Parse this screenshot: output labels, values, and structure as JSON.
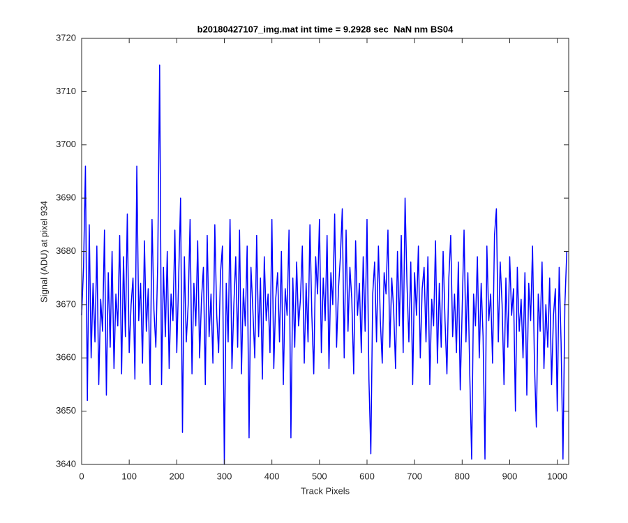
{
  "chart_data": {
    "type": "line",
    "title": "b20180427107_img.mat int time = 9.2928 sec  NaN nm BS04",
    "xlabel": "Track Pixels",
    "ylabel": "Signal (ADU) at pixel 934",
    "color": "#0000ff",
    "xlim": [
      0,
      1024
    ],
    "ylim": [
      3640,
      3720
    ],
    "xticks": [
      0,
      100,
      200,
      300,
      400,
      500,
      600,
      700,
      800,
      900,
      1000
    ],
    "yticks": [
      3640,
      3650,
      3660,
      3670,
      3680,
      3690,
      3700,
      3710,
      3720
    ],
    "x": [
      0,
      4,
      8,
      12,
      16,
      20,
      24,
      28,
      32,
      36,
      40,
      44,
      48,
      52,
      56,
      60,
      64,
      68,
      72,
      76,
      80,
      84,
      88,
      92,
      96,
      100,
      104,
      108,
      112,
      116,
      120,
      124,
      128,
      132,
      136,
      140,
      144,
      148,
      152,
      156,
      160,
      164,
      168,
      172,
      176,
      180,
      184,
      188,
      192,
      196,
      200,
      204,
      208,
      212,
      216,
      220,
      224,
      228,
      232,
      236,
      240,
      244,
      248,
      252,
      256,
      260,
      264,
      268,
      272,
      276,
      280,
      284,
      288,
      292,
      296,
      300,
      304,
      308,
      312,
      316,
      320,
      324,
      328,
      332,
      336,
      340,
      344,
      348,
      352,
      356,
      360,
      364,
      368,
      372,
      376,
      380,
      384,
      388,
      392,
      396,
      400,
      404,
      408,
      412,
      416,
      420,
      424,
      428,
      432,
      436,
      440,
      444,
      448,
      452,
      456,
      460,
      464,
      468,
      472,
      476,
      480,
      484,
      488,
      492,
      496,
      500,
      504,
      508,
      512,
      516,
      520,
      524,
      528,
      532,
      536,
      540,
      544,
      548,
      552,
      556,
      560,
      564,
      568,
      572,
      576,
      580,
      584,
      588,
      592,
      596,
      600,
      604,
      608,
      612,
      616,
      620,
      624,
      628,
      632,
      636,
      640,
      644,
      648,
      652,
      656,
      660,
      664,
      668,
      672,
      676,
      680,
      684,
      688,
      692,
      696,
      700,
      704,
      708,
      712,
      716,
      720,
      724,
      728,
      732,
      736,
      740,
      744,
      748,
      752,
      756,
      760,
      764,
      768,
      772,
      776,
      780,
      784,
      788,
      792,
      796,
      800,
      804,
      808,
      812,
      816,
      820,
      824,
      828,
      832,
      836,
      840,
      844,
      848,
      852,
      856,
      860,
      864,
      868,
      872,
      876,
      880,
      884,
      888,
      892,
      896,
      900,
      904,
      908,
      912,
      916,
      920,
      924,
      928,
      932,
      936,
      940,
      944,
      948,
      952,
      956,
      960,
      964,
      968,
      972,
      976,
      980,
      984,
      988,
      992,
      996,
      1000,
      1004,
      1008,
      1012,
      1016,
      1020
    ],
    "values": [
      3668,
      3677,
      3696,
      3652,
      3685,
      3660,
      3674,
      3663,
      3681,
      3655,
      3671,
      3665,
      3684,
      3653,
      3676,
      3662,
      3680,
      3658,
      3672,
      3666,
      3683,
      3657,
      3679,
      3664,
      3687,
      3661,
      3670,
      3675,
      3656,
      3696,
      3667,
      3674,
      3659,
      3682,
      3665,
      3673,
      3655,
      3686,
      3669,
      3662,
      3678,
      3715,
      3655,
      3677,
      3664,
      3680,
      3658,
      3672,
      3667,
      3684,
      3661,
      3675,
      3690,
      3646,
      3679,
      3663,
      3670,
      3686,
      3657,
      3674,
      3666,
      3682,
      3660,
      3671,
      3677,
      3655,
      3683,
      3664,
      3672,
      3659,
      3685,
      3668,
      3661,
      3676,
      3681,
      3640,
      3674,
      3663,
      3686,
      3658,
      3670,
      3679,
      3662,
      3684,
      3657,
      3673,
      3666,
      3681,
      3645,
      3677,
      3669,
      3660,
      3683,
      3664,
      3675,
      3656,
      3679,
      3667,
      3672,
      3661,
      3686,
      3658,
      3671,
      3676,
      3663,
      3680,
      3655,
      3673,
      3668,
      3684,
      3645,
      3675,
      3662,
      3678,
      3666,
      3671,
      3681,
      3659,
      3674,
      3663,
      3685,
      3668,
      3657,
      3679,
      3672,
      3686,
      3661,
      3675,
      3667,
      3683,
      3658,
      3676,
      3670,
      3687,
      3662,
      3673,
      3679,
      3688,
      3660,
      3684,
      3665,
      3677,
      3671,
      3657,
      3682,
      3668,
      3674,
      3661,
      3679,
      3665,
      3686,
      3656,
      3642,
      3672,
      3678,
      3663,
      3681,
      3667,
      3659,
      3676,
      3672,
      3684,
      3662,
      3675,
      3669,
      3658,
      3680,
      3666,
      3683,
      3661,
      3690,
      3674,
      3663,
      3678,
      3655,
      3676,
      3668,
      3681,
      3660,
      3673,
      3677,
      3663,
      3679,
      3655,
      3671,
      3666,
      3682,
      3659,
      3674,
      3662,
      3680,
      3667,
      3657,
      3675,
      3683,
      3664,
      3672,
      3661,
      3678,
      3654,
      3669,
      3684,
      3663,
      3676,
      3657,
      3641,
      3672,
      3666,
      3679,
      3660,
      3674,
      3664,
      3641,
      3681,
      3667,
      3672,
      3659,
      3683,
      3688,
      3663,
      3678,
      3670,
      3655,
      3675,
      3662,
      3679,
      3668,
      3673,
      3650,
      3677,
      3665,
      3671,
      3660,
      3676,
      3653,
      3674,
      3667,
      3681,
      3659,
      3647,
      3672,
      3665,
      3678,
      3658,
      3670,
      3662,
      3675,
      3655,
      3668,
      3673,
      3650,
      3677,
      3663,
      3641,
      3670,
      3680
    ]
  }
}
